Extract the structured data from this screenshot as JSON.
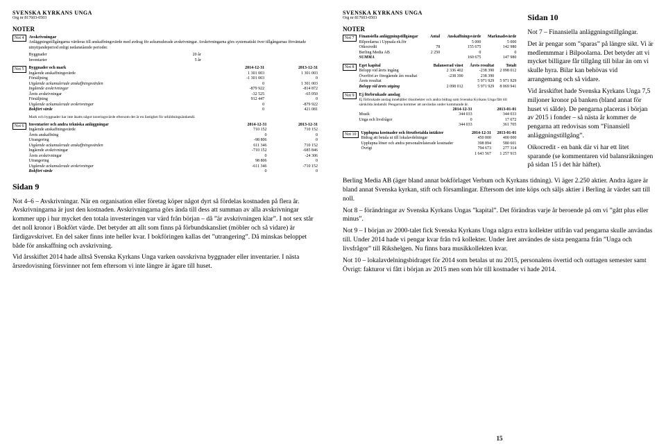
{
  "org_name": "SVENSKA KYRKANS UNGA",
  "org_nr": "Org nr 817603-0503",
  "left": {
    "noter": "NOTER",
    "not4": {
      "tag": "Not 4",
      "title": "Avskrivningar",
      "p1": "Anläggningstillgångarna värderas till anskaffningsvärde med avdrag för ackumulerade avskrivningar. Avskrivningarna görs systematiskt över tillgångarnas förväntade utnyttjandeperiod enligt nedanstående perioder.",
      "rows1": [
        [
          "Byggnader",
          "",
          "20 år"
        ],
        [
          "Inventarier",
          "",
          "5 år"
        ]
      ]
    },
    "not5": {
      "tag": "Not 5",
      "title": "Byggnader och mark",
      "cols": [
        "",
        "2014-12-31",
        "2013-12-31"
      ],
      "rows": [
        [
          "Ingående anskaffningsvärde",
          "1 301 003",
          "1 301 003"
        ],
        [
          "Försäljning",
          "-1 301 003",
          "0"
        ],
        [
          "Utgående ackumulerade anskaffningsvärden",
          "0",
          "1 301 003",
          "it"
        ],
        [
          "Ingående avskrivningar",
          "-879 922",
          "-814 872",
          "it"
        ],
        [
          "Årets avskrivningar",
          "-32 525",
          "-65 050"
        ],
        [
          "Försäljning",
          "912 447",
          "0"
        ],
        [
          "Utgående ackumulerade avskrivningar",
          "0",
          "-879 922",
          "it"
        ],
        [
          "Bokfört värde",
          "0",
          "421 081",
          "bi"
        ]
      ],
      "foot": "Mark och byggnader har inte åsatts något taxeringsvärde eftersom det är en fastighet för utbildningsändamål."
    },
    "not6": {
      "tag": "Not 6",
      "title": "Inventarier och andra tekniska anläggningar",
      "cols": [
        "",
        "2014-12-31",
        "2013-12-31"
      ],
      "rows": [
        [
          "Ingående anskaffningsvärde",
          "710 152",
          "710 152"
        ],
        [
          "Årets anskaffning",
          "0",
          "0"
        ],
        [
          "Utrangering",
          "-98 806",
          "0"
        ],
        [
          "Utgående ackumulerade anskaffningsvärden",
          "611 346",
          "710 152",
          "it"
        ],
        [
          "Ingående avskrivningar",
          "-710 152",
          "-685 846"
        ],
        [
          "Årets avskrivningar",
          "0",
          "-24 306"
        ],
        [
          "Utrangering",
          "98 806",
          "0"
        ],
        [
          "Utgående ackumulerade avskrivningar",
          "-611 346",
          "-710 152",
          "it"
        ],
        [
          "Bokfört värde",
          "0",
          "0",
          "bi"
        ]
      ]
    },
    "sidan9": "Sidan 9",
    "body": "Not 4–6 – Avskrivningar. När en organisation eller företag köper något dyrt så fördelas kostnaden på flera år. Avskrivningarna är just den kostnaden. Avskrivningarna görs ända till dess att summan av alla avskrivningar kommer upp i hur mycket den totala investeringen var värd från början – då ”är avskrivningen klar”. I not sex står det noll kronor i Bokfört värde. Det betyder att allt som finns på förbundskansliet (möbler och så vidare) är färdigavskrivet. En del saker finns inte heller kvar. I bokföringen kallas det ”utrangering”. Då minskas beloppet både för anskaffning och avskrivning.",
    "body2": "Vid årsskiftet 2014 hade alltså Svenska Kyrkans Unga varken oavskrivna byggnader eller inventarier. I nästa årsredovisning försvinner not fem eftersom vi inte längre är ägare till huset."
  },
  "right": {
    "sidan10": "Sidan 10",
    "col_title": "Not 7 – Finansiella anläggningstillgångar.",
    "col_body": "Det är pengar som ”sparas” på längre sikt. Vi är medlemmmar i Bilpoolarna. Det betyder att vi mycket billigare får tillgång till bilar än om vi skulle hyra. Bilar kan behövas vid arrangemang och så vidare.",
    "col_body2": "Vid årsskiftet hade Svenska Kyrkans Unga 7,5 miljoner kronor på banken (bland annat för huset vi sålde). De pengarna placeras i början av 2015 i fonder – så nästa år kommer de pengarna att redovisas som ”Finansiell anläggningstillgång”.",
    "col_body3": "Oikocredit - en bank där vi har ett litet sparande (se kommentaren vid balansräkningen på sidan 15 i det här häftet).",
    "not7": {
      "tag": "Not 7",
      "title": "Finansiella anläggningstillgångar",
      "cols": [
        "Beteckning",
        "Antal",
        "Anskaffningsvärde",
        "Marknadsvärde"
      ],
      "rows": [
        [
          "Bilpoolarna i Uppsala ek.för",
          "",
          "5 000",
          "5 000"
        ],
        [
          "Oikocredit",
          "78",
          "155 675",
          "142 980"
        ],
        [
          "Berling Media AB",
          "2 250",
          "0",
          "0"
        ],
        [
          "SUMMA",
          "",
          "160 675",
          "147 980",
          "bi"
        ]
      ]
    },
    "not8": {
      "tag": "Not 8",
      "title": "Eget kapital",
      "cols": [
        "",
        "Balanserad vinst",
        "Årets resultat",
        "Totalt"
      ],
      "rows": [
        [
          "Belopp vid årets ingång",
          "2 336 402",
          "-238 390",
          "2 098 012"
        ],
        [
          "Överfört av föregående års resultat",
          "-238 390",
          "238 390",
          ""
        ],
        [
          "Årets resultat",
          "",
          "5 971 929",
          "5 971 929"
        ],
        [
          "Belopp vid årets utgång",
          "2 098 012",
          "5 971 929",
          "8 069 941",
          "bi"
        ]
      ]
    },
    "not9": {
      "tag": "Not 9",
      "title": "Ej förbrukade anslag",
      "p": "Ej förbrukade anslag innehåller riksobekter och andra bidrag som Svenska Kyrkans Unga fått till särskilda ändamål. Pengarna kommer att användas under kommande år.",
      "cols": [
        "",
        "2014-12-31",
        "2013-01-01"
      ],
      "rows": [
        [
          "Musik",
          "344 033",
          "344 033"
        ],
        [
          "Unga och livsfrågor",
          "0",
          "17 672"
        ],
        [
          "",
          "344 033",
          "361 705",
          "bi"
        ]
      ]
    },
    "not10": {
      "tag": "Not 10",
      "title": "Upplupna kostnader och förutbetalda intäkter",
      "cols": [
        "",
        "2014-12-31",
        "2013-01-01"
      ],
      "rows": [
        [
          "Bidrag att betala ut till lokalavdelningar",
          "450 000",
          "400 000"
        ],
        [
          "Upplupna löner och andra personalrelaterade kostnader",
          "398 894",
          "580 601"
        ],
        [
          "Övrigt",
          "794 673",
          "277 314"
        ],
        [
          "",
          "1 643 567",
          "1 257 915",
          "bi"
        ]
      ]
    },
    "bottom1": "Berling Media AB (äger bland annat bokförlaget Verbum och Kyrkans tidning). Vi äger 2.250 aktier. Andra ägare är bland annat Svenska kyrkan, stift och församlingar. Eftersom det inte köps och säljs aktier i Berling är värdet satt till noll.",
    "bottom2": "Not 8 – förändringar av Svenska Kyrkans Ungas ”kapital”. Det förändras varje år beroende på om vi ”gått plus eller minus”.",
    "bottom3": "Not 9 – I början av 2000-talet fick Svenska Kyrkans Unga några extra kollekter utifrån vad pengarna skulle användas till. Under 2014 hade vi pengar kvar från två kollekter. Under året användes de sista pengarna från ”Unga och livsfrågor” till Rikshelgen. Nu finns bara musikkollekten kvar.",
    "bottom4": "Not 10 – lokalavdelningsbidraget för 2014 som betalas ut nu 2015, personalens övertid och outtagen semester samt Övrigt: fakturor vi fått i början av 2015 men som hör till kostnader vi hade 2014.",
    "page_num": "15"
  }
}
